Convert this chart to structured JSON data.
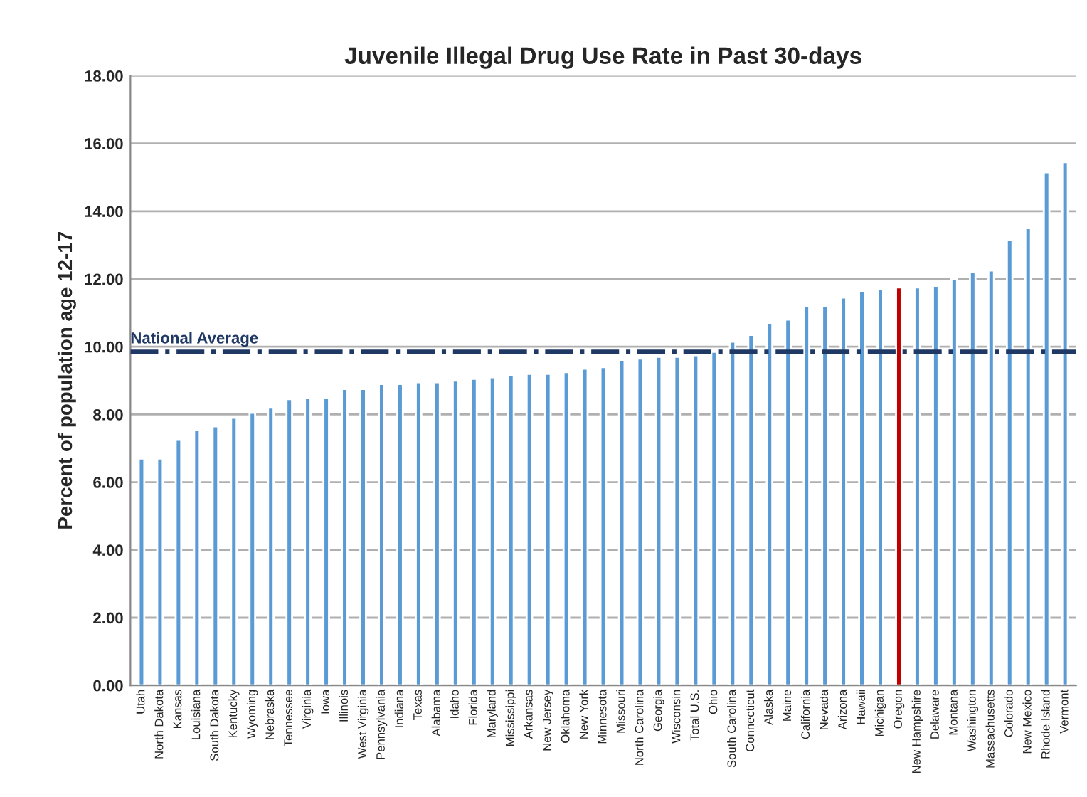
{
  "chart_data": {
    "type": "bar",
    "title": "Juvenile Illegal Drug Use Rate in Past 30-days",
    "ylabel": "Percent of population age 12-17",
    "categories": [
      "Utah",
      "North Dakota",
      "Kansas",
      "Louisiana",
      "South Dakota",
      "Kentucky",
      "Wyoming",
      "Nebraska",
      "Tennessee",
      "Virginia",
      "Iowa",
      "Illinois",
      "West Virginia",
      "Pennsylvania",
      "Indiana",
      "Texas",
      "Alabama",
      "Idaho",
      "Florida",
      "Maryland",
      "Mississippi",
      "Arkansas",
      "New Jersey",
      "Oklahoma",
      "New York",
      "Minnesota",
      "Missouri",
      "North Carolina",
      "Georgia",
      "Wisconsin",
      "Total U.S.",
      "Ohio",
      "South Carolina",
      "Connecticut",
      "Alaska",
      "Maine",
      "California",
      "Nevada",
      "Arizona",
      "Hawaii",
      "Michigan",
      "Oregon",
      "New Hampshire",
      "Delaware",
      "Montana",
      "Washington",
      "Massachusetts",
      "Colorado",
      "New Mexico",
      "Rhode Island",
      "Vermont"
    ],
    "values": [
      6.7,
      6.7,
      7.25,
      7.55,
      7.65,
      7.9,
      8.05,
      8.2,
      8.45,
      8.5,
      8.5,
      8.75,
      8.75,
      8.9,
      8.9,
      8.95,
      8.95,
      9.0,
      9.05,
      9.1,
      9.15,
      9.2,
      9.2,
      9.25,
      9.35,
      9.4,
      9.6,
      9.65,
      9.7,
      9.7,
      9.75,
      9.85,
      10.15,
      10.35,
      10.7,
      10.8,
      11.2,
      11.2,
      11.45,
      11.65,
      11.7,
      11.75,
      11.75,
      11.8,
      12.0,
      12.2,
      12.25,
      13.15,
      13.5,
      15.15,
      15.45
    ],
    "colors": [
      "#5b9bd5",
      "#5b9bd5",
      "#5b9bd5",
      "#5b9bd5",
      "#5b9bd5",
      "#5b9bd5",
      "#5b9bd5",
      "#5b9bd5",
      "#5b9bd5",
      "#5b9bd5",
      "#5b9bd5",
      "#5b9bd5",
      "#5b9bd5",
      "#5b9bd5",
      "#5b9bd5",
      "#5b9bd5",
      "#5b9bd5",
      "#5b9bd5",
      "#5b9bd5",
      "#5b9bd5",
      "#5b9bd5",
      "#5b9bd5",
      "#5b9bd5",
      "#5b9bd5",
      "#5b9bd5",
      "#5b9bd5",
      "#5b9bd5",
      "#5b9bd5",
      "#5b9bd5",
      "#5b9bd5",
      "#5b9bd5",
      "#5b9bd5",
      "#5b9bd5",
      "#5b9bd5",
      "#5b9bd5",
      "#5b9bd5",
      "#5b9bd5",
      "#5b9bd5",
      "#5b9bd5",
      "#5b9bd5",
      "#5b9bd5",
      "#c00000",
      "#5b9bd5",
      "#5b9bd5",
      "#5b9bd5",
      "#5b9bd5",
      "#5b9bd5",
      "#5b9bd5",
      "#5b9bd5",
      "#5b9bd5",
      "#5b9bd5"
    ],
    "ylim": [
      0,
      18
    ],
    "yticks": [
      {
        "value": 0,
        "label": "0.00"
      },
      {
        "value": 2,
        "label": "2.00"
      },
      {
        "value": 4,
        "label": "4.00"
      },
      {
        "value": 6,
        "label": "6.00"
      },
      {
        "value": 8,
        "label": "8.00"
      },
      {
        "value": 10,
        "label": "10.00"
      },
      {
        "value": 12,
        "label": "12.00"
      },
      {
        "value": 14,
        "label": "14.00"
      },
      {
        "value": 16,
        "label": "16.00"
      },
      {
        "value": 18,
        "label": "18.00"
      }
    ],
    "ref_lines": [
      {
        "axis": "y",
        "value": 9.85,
        "label": "National Average",
        "color": "#1f3864",
        "line_style": "dashdot"
      }
    ],
    "grid": "y"
  }
}
